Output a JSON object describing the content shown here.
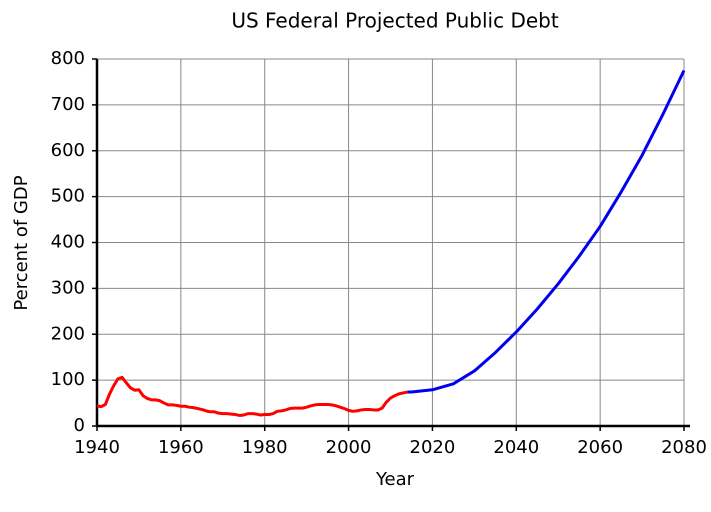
{
  "chart_data": {
    "type": "line",
    "title": "US Federal Projected Public Debt",
    "x_label": "Year",
    "y_label": "Percent of GDP",
    "xlim": [
      1940,
      2080
    ],
    "xticks": [
      1940,
      1960,
      1980,
      2000,
      2020,
      2040,
      2060,
      2080
    ],
    "ylim": [
      0,
      800
    ],
    "yticks": [
      0,
      100,
      200,
      300,
      400,
      500,
      600,
      700,
      800
    ],
    "grid": true,
    "series": [
      {
        "color": "#ff0000",
        "x": [
          1940,
          1941,
          1942,
          1943,
          1944,
          1945,
          1946,
          1947,
          1948,
          1949,
          1950,
          1951,
          1952,
          1953,
          1954,
          1955,
          1956,
          1957,
          1958,
          1959,
          1960,
          1961,
          1962,
          1963,
          1964,
          1965,
          1966,
          1967,
          1968,
          1969,
          1970,
          1971,
          1972,
          1973,
          1974,
          1975,
          1976,
          1977,
          1978,
          1979,
          1980,
          1981,
          1982,
          1983,
          1984,
          1985,
          1986,
          1987,
          1988,
          1989,
          1990,
          1991,
          1992,
          1993,
          1994,
          1995,
          1996,
          1997,
          1998,
          1999,
          2000,
          2001,
          2002,
          2003,
          2004,
          2005,
          2006,
          2007,
          2008,
          2009,
          2010,
          2011,
          2012,
          2013,
          2014
        ],
        "values": [
          44,
          42,
          47,
          70,
          88,
          103,
          106,
          94,
          83,
          78,
          79,
          66,
          60,
          57,
          57,
          55,
          50,
          46,
          46,
          45,
          43,
          43,
          41,
          40,
          38,
          36,
          33,
          31,
          31,
          28,
          27,
          27,
          26,
          25,
          23,
          24,
          27,
          27,
          26,
          24,
          25,
          25,
          27,
          32,
          33,
          35,
          38,
          39,
          39,
          39,
          41,
          44,
          46,
          47,
          47,
          47,
          46,
          44,
          41,
          38,
          34,
          32,
          33,
          35,
          36,
          36,
          35,
          35,
          39,
          52,
          61,
          66,
          70,
          72,
          74
        ]
      },
      {
        "color": "#0000ee",
        "x": [
          2014,
          2015,
          2020,
          2025,
          2030,
          2035,
          2040,
          2045,
          2050,
          2055,
          2060,
          2065,
          2070,
          2075,
          2080
        ],
        "values": [
          74,
          74,
          79,
          92,
          120,
          160,
          205,
          255,
          310,
          370,
          435,
          510,
          590,
          680,
          775
        ]
      }
    ]
  }
}
